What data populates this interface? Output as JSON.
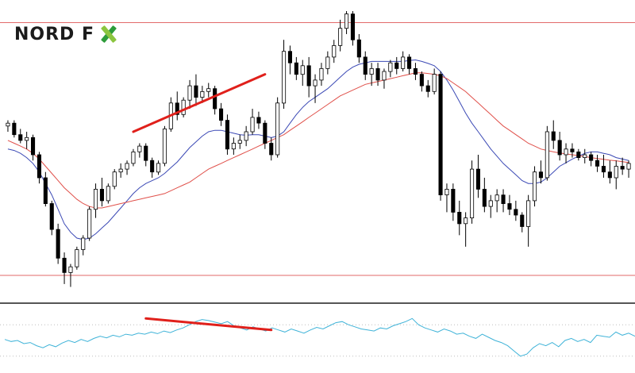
{
  "brand": {
    "logo_text": "NORD F",
    "logo_x": "X",
    "logo_colors": [
      "#2d9c3a",
      "#8bc53f"
    ]
  },
  "colors": {
    "bull": "#ffffff",
    "bear": "#000000",
    "wick": "#000000",
    "ma_fast": "#3b49b5",
    "ma_slow": "#e0504a",
    "level_line": "#e26a6a",
    "trendline": "#e0201b",
    "oscillator": "#3fb3d8",
    "panel_separator": "#555555",
    "osc_level": "#bdbdbd"
  },
  "chart_data": [
    {
      "type": "candlestick",
      "title": "",
      "xlabel": "",
      "ylabel": "",
      "ylim": [
        0,
        100
      ],
      "grid": false,
      "levels": [
        {
          "y": 96
        },
        {
          "y": 8
        }
      ],
      "series": [
        {
          "kind": "ohlc",
          "ohlc": [
            [
              60,
              62,
              58,
              61
            ],
            [
              61,
              62,
              56,
              57
            ],
            [
              57,
              59,
              54,
              55
            ],
            [
              55,
              58,
              52,
              56
            ],
            [
              56,
              57,
              48,
              50
            ],
            [
              50,
              51,
              40,
              42
            ],
            [
              42,
              44,
              32,
              33
            ],
            [
              33,
              34,
              22,
              24
            ],
            [
              24,
              26,
              12,
              14
            ],
            [
              14,
              16,
              5,
              9
            ],
            [
              9,
              12,
              4,
              11
            ],
            [
              11,
              18,
              10,
              17
            ],
            [
              17,
              22,
              15,
              21
            ],
            [
              21,
              32,
              20,
              31
            ],
            [
              31,
              40,
              28,
              38
            ],
            [
              38,
              42,
              32,
              34
            ],
            [
              34,
              40,
              33,
              39
            ],
            [
              39,
              45,
              38,
              44
            ],
            [
              44,
              47,
              42,
              45
            ],
            [
              45,
              48,
              43,
              47
            ],
            [
              47,
              52,
              46,
              51
            ],
            [
              51,
              54,
              49,
              53
            ],
            [
              53,
              54,
              46,
              48
            ],
            [
              48,
              49,
              42,
              44
            ],
            [
              44,
              48,
              43,
              47
            ],
            [
              47,
              60,
              46,
              59
            ],
            [
              59,
              70,
              58,
              68
            ],
            [
              68,
              72,
              62,
              64
            ],
            [
              64,
              70,
              63,
              69
            ],
            [
              69,
              76,
              66,
              74
            ],
            [
              74,
              78,
              67,
              70
            ],
            [
              70,
              74,
              68,
              72
            ],
            [
              72,
              75,
              70,
              73
            ],
            [
              73,
              74,
              64,
              66
            ],
            [
              66,
              68,
              60,
              62
            ],
            [
              62,
              64,
              50,
              52
            ],
            [
              52,
              56,
              50,
              54
            ],
            [
              54,
              57,
              52,
              55
            ],
            [
              55,
              60,
              53,
              58
            ],
            [
              58,
              66,
              57,
              63
            ],
            [
              63,
              65,
              59,
              61
            ],
            [
              61,
              62,
              52,
              54
            ],
            [
              54,
              56,
              48,
              50
            ],
            [
              50,
              70,
              49,
              68
            ],
            [
              68,
              90,
              66,
              86
            ],
            [
              86,
              88,
              78,
              82
            ],
            [
              82,
              84,
              76,
              78
            ],
            [
              78,
              83,
              74,
              81
            ],
            [
              81,
              84,
              70,
              74
            ],
            [
              74,
              78,
              68,
              76
            ],
            [
              76,
              82,
              74,
              80
            ],
            [
              80,
              86,
              78,
              84
            ],
            [
              84,
              90,
              82,
              88
            ],
            [
              88,
              97,
              86,
              94
            ],
            [
              94,
              100,
              92,
              99
            ],
            [
              99,
              100,
              88,
              90
            ],
            [
              90,
              92,
              82,
              84
            ],
            [
              84,
              86,
              76,
              78
            ],
            [
              78,
              82,
              74,
              80
            ],
            [
              80,
              82,
              74,
              76
            ],
            [
              76,
              80,
              73,
              79
            ],
            [
              79,
              83,
              77,
              82
            ],
            [
              82,
              84,
              78,
              80
            ],
            [
              80,
              86,
              79,
              84
            ],
            [
              84,
              85,
              78,
              80
            ],
            [
              80,
              82,
              76,
              78
            ],
            [
              78,
              79,
              72,
              74
            ],
            [
              74,
              76,
              70,
              72
            ],
            [
              72,
              80,
              71,
              78
            ],
            [
              78,
              79,
              34,
              36
            ],
            [
              36,
              40,
              30,
              38
            ],
            [
              38,
              40,
              27,
              30
            ],
            [
              30,
              34,
              22,
              26
            ],
            [
              26,
              30,
              18,
              28
            ],
            [
              28,
              48,
              26,
              45
            ],
            [
              45,
              50,
              35,
              38
            ],
            [
              38,
              42,
              30,
              32
            ],
            [
              32,
              36,
              28,
              34
            ],
            [
              34,
              38,
              30,
              36
            ],
            [
              36,
              38,
              30,
              33
            ],
            [
              33,
              36,
              29,
              31
            ],
            [
              31,
              34,
              27,
              29
            ],
            [
              29,
              30,
              23,
              25
            ],
            [
              25,
              36,
              18,
              34
            ],
            [
              34,
              46,
              32,
              44
            ],
            [
              44,
              48,
              40,
              42
            ],
            [
              42,
              60,
              41,
              58
            ],
            [
              58,
              62,
              52,
              55
            ],
            [
              55,
              58,
              48,
              50
            ],
            [
              50,
              54,
              47,
              52
            ],
            [
              52,
              54,
              49,
              51
            ],
            [
              51,
              52,
              48,
              49
            ],
            [
              49,
              52,
              47,
              50
            ],
            [
              50,
              51,
              46,
              48
            ],
            [
              48,
              50,
              44,
              46
            ],
            [
              46,
              50,
              42,
              44
            ],
            [
              44,
              48,
              40,
              42
            ],
            [
              42,
              48,
              38,
              46
            ],
            [
              46,
              49,
              43,
              45
            ],
            [
              45,
              48,
              42,
              47
            ]
          ]
        },
        {
          "kind": "ma",
          "name": "",
          "role": "ma_fast",
          "values": [
            52,
            51.5,
            50.5,
            49,
            47,
            44,
            40,
            36,
            31,
            26,
            23,
            21,
            20.5,
            21,
            22.5,
            24.5,
            26.5,
            29,
            31.5,
            34,
            36.5,
            38.5,
            40,
            41,
            42,
            43.5,
            45.5,
            47.5,
            50,
            52.5,
            54.5,
            56.5,
            58,
            58.5,
            58.5,
            58,
            57.5,
            57,
            56.8,
            57,
            57,
            56.5,
            56,
            56.5,
            58,
            61,
            64,
            66.5,
            68.5,
            70,
            71.5,
            73,
            75,
            77,
            79,
            80.5,
            81.5,
            82,
            82.5,
            82.5,
            82.5,
            82.5,
            82.5,
            82.5,
            82.8,
            83,
            82.5,
            81.8,
            81,
            79,
            76,
            72.5,
            68.5,
            64.5,
            61,
            58,
            55,
            52,
            49.5,
            47,
            45,
            43,
            41,
            40,
            40,
            40.5,
            42,
            44,
            46,
            47.2,
            48.5,
            49.5,
            50.5,
            51,
            51,
            50.5,
            50,
            49,
            48.5,
            48
          ]
        },
        {
          "kind": "ma",
          "name": "",
          "role": "ma_slow",
          "values": [
            55,
            54,
            53,
            52,
            50.5,
            48.5,
            46,
            43.5,
            41,
            38.5,
            36.5,
            34.5,
            33,
            32,
            31.5,
            31.5,
            32,
            32.5,
            33,
            33.5,
            34,
            34.5,
            35,
            35.5,
            36,
            36.5,
            37.5,
            38.5,
            39.5,
            40.5,
            42,
            43.5,
            45,
            46,
            47,
            48,
            49,
            50,
            51,
            52,
            53,
            54,
            55,
            56,
            57,
            58.5,
            60,
            61.5,
            63,
            64.5,
            66,
            67.5,
            69,
            70.5,
            71.5,
            72.5,
            73.5,
            74.5,
            75,
            75.5,
            76,
            76.5,
            77,
            77.5,
            78,
            78.5,
            78.5,
            78.3,
            78,
            77.5,
            76.5,
            75,
            73.5,
            72,
            70,
            68,
            66,
            64,
            62,
            60,
            58.5,
            57,
            55.5,
            54,
            53,
            52,
            51.5,
            51,
            50.6,
            50.3,
            50,
            49.7,
            49.4,
            49,
            48.7,
            48.4,
            48.1,
            47.9,
            47.6,
            47.3
          ]
        }
      ]
    },
    {
      "type": "line",
      "title": "",
      "xlabel": "",
      "ylabel": "",
      "ylim": [
        0,
        100
      ],
      "grid": false,
      "levels": [
        {
          "y": 80
        },
        {
          "y": 20
        }
      ],
      "series": [
        {
          "name": "",
          "values": [
            52,
            48,
            50,
            44,
            46,
            40,
            36,
            42,
            38,
            45,
            50,
            46,
            52,
            48,
            54,
            58,
            55,
            60,
            57,
            62,
            60,
            64,
            62,
            66,
            63,
            68,
            65,
            70,
            74,
            80,
            86,
            90,
            88,
            85,
            82,
            86,
            78,
            74,
            70,
            76,
            72,
            68,
            74,
            70,
            66,
            72,
            68,
            64,
            70,
            75,
            72,
            78,
            84,
            86,
            80,
            76,
            72,
            70,
            68,
            74,
            72,
            78,
            82,
            86,
            92,
            80,
            74,
            70,
            66,
            72,
            68,
            62,
            64,
            58,
            54,
            62,
            56,
            50,
            46,
            40,
            30,
            20,
            24,
            36,
            44,
            40,
            46,
            38,
            50,
            54,
            48,
            52,
            46,
            60,
            58,
            56,
            66,
            60,
            64,
            58
          ]
        }
      ]
    }
  ],
  "annotations": {
    "price_trendline": {
      "from": [
        20,
        58
      ],
      "to": [
        41,
        78
      ]
    },
    "osc_trendline": {
      "from": [
        22,
        92
      ],
      "to": [
        42,
        70
      ]
    }
  }
}
